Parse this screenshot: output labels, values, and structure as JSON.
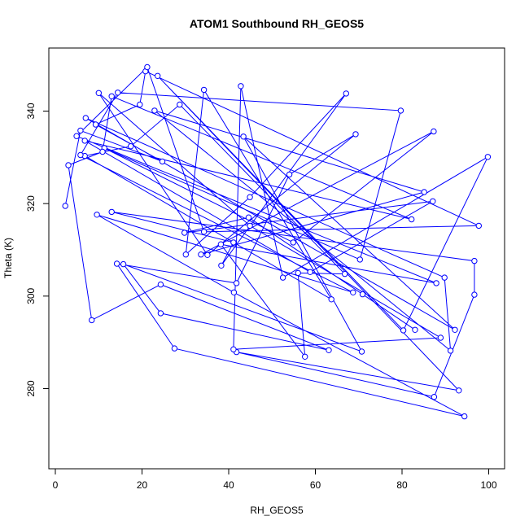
{
  "chart_data": {
    "type": "line",
    "title": "ATOM1 Southbound RH_GEOS5",
    "xlabel": "RH_GEOS5",
    "ylabel": "Theta (K)",
    "xlim": [
      0,
      100
    ],
    "ylim": [
      262,
      353
    ],
    "xticks": [
      0,
      20,
      40,
      60,
      80,
      100
    ],
    "yticks": [
      280,
      300,
      320,
      340
    ],
    "grid": false,
    "legend": "none",
    "color": "#0000ff",
    "series": [
      {
        "x": [
          2.3,
          5.8,
          24.7,
          9.3,
          19.5,
          20.8,
          97.7,
          34.3,
          21.2,
          4.9,
          87.9,
          38.2,
          57.6,
          56.0,
          66.8,
          28.7,
          17.4,
          6.8,
          63.7,
          34.3,
          30.1,
          44.9,
          67.1,
          38.3,
          41.1,
          13.0,
          96.7,
          96.7,
          87.4,
          41.8,
          93.1,
          23.6,
          80.3,
          99.8,
          52.5,
          42.8,
          41.1,
          88.9,
          44.9,
          10.0,
          35.1,
          69.3,
          54.0,
          41.8,
          14.2,
          27.5,
          94.4,
          41.2,
          9.6,
          68.7,
          5.8,
          14.4,
          79.7,
          70.3,
          11.3,
          54.9,
          87.3,
          33.6,
          85.1,
          22.9,
          91.2,
          89.8,
          7.0,
          92.2,
          43.4,
          70.7,
          15.7,
          24.3,
          63.1,
          24.3,
          8.4,
          3.0,
          10.9,
          13.0,
          82.2,
          6.8,
          58.8,
          87.1,
          29.8,
          44.6,
          70.9,
          83.0
        ],
        "y": [
          319.5,
          335.8,
          329.1,
          337.1,
          341.4,
          348.6,
          315.2,
          313.9,
          349.5,
          334.6,
          302.8,
          311.2,
          286.9,
          305.0,
          304.8,
          341.4,
          332.4,
          330.3,
          299.3,
          344.6,
          309.0,
          321.4,
          343.8,
          306.6,
          311.6,
          318.2,
          307.6,
          300.3,
          278.2,
          287.9,
          279.6,
          347.6,
          292.6,
          330.1,
          304.0,
          345.4,
          288.5,
          291.0,
          315.2,
          343.9,
          308.9,
          335.0,
          326.3,
          302.8,
          307.0,
          288.7,
          274.0,
          300.8,
          317.6,
          300.8,
          330.5,
          344.0,
          340.1,
          307.9,
          332.0,
          311.6,
          335.6,
          309.0,
          322.5,
          340.1,
          288.2,
          304.0,
          338.5,
          292.7,
          334.5,
          288.0,
          306.9,
          296.3,
          288.3,
          302.5,
          294.8,
          328.3,
          331.2,
          343.2,
          316.6,
          333.6,
          305.2,
          320.5,
          313.7,
          317.0,
          300.4,
          292.7
        ]
      }
    ]
  }
}
